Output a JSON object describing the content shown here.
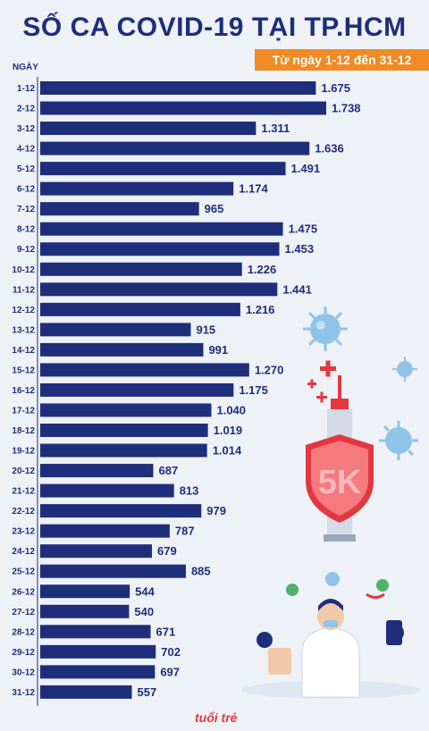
{
  "header": {
    "title": "SỐ CA COVID-19 TẠI TP.HCM",
    "subtitle": "Từ ngày 1-12 đến 31-12"
  },
  "axis_header": "NGÀY",
  "illustration": {
    "badge_text": "5K"
  },
  "logo": "tuổi trẻ",
  "colors": {
    "bar": "#1f2e7a",
    "title": "#1f2e7a",
    "badge": "#f08a24",
    "background": "#eef2f7"
  },
  "chart_data": {
    "type": "bar",
    "orientation": "horizontal",
    "title": "SỐ CA COVID-19 TẠI TP.HCM",
    "subtitle": "Từ ngày 1-12 đến 31-12",
    "ylabel": "NGÀY",
    "categories": [
      "1-12",
      "2-12",
      "3-12",
      "4-12",
      "5-12",
      "6-12",
      "7-12",
      "8-12",
      "9-12",
      "10-12",
      "11-12",
      "12-12",
      "13-12",
      "14-12",
      "15-12",
      "16-12",
      "17-12",
      "18-12",
      "19-12",
      "20-12",
      "21-12",
      "22-12",
      "23-12",
      "24-12",
      "25-12",
      "26-12",
      "27-12",
      "28-12",
      "29-12",
      "30-12",
      "31-12"
    ],
    "values": [
      1675,
      1738,
      1311,
      1636,
      1491,
      1174,
      965,
      1475,
      1453,
      1226,
      1441,
      1216,
      915,
      991,
      1270,
      1175,
      1040,
      1019,
      1014,
      687,
      813,
      979,
      787,
      679,
      885,
      544,
      540,
      671,
      702,
      697,
      557
    ],
    "value_labels": [
      "1.675",
      "1.738",
      "1.311",
      "1.636",
      "1.491",
      "1.174",
      "965",
      "1.475",
      "1.453",
      "1.226",
      "1.441",
      "1.216",
      "915",
      "991",
      "1.270",
      "1.175",
      "1.040",
      "1.019",
      "1.014",
      "687",
      "813",
      "979",
      "787",
      "679",
      "885",
      "544",
      "540",
      "671",
      "702",
      "697",
      "557"
    ],
    "grid": false,
    "legend": "none"
  }
}
